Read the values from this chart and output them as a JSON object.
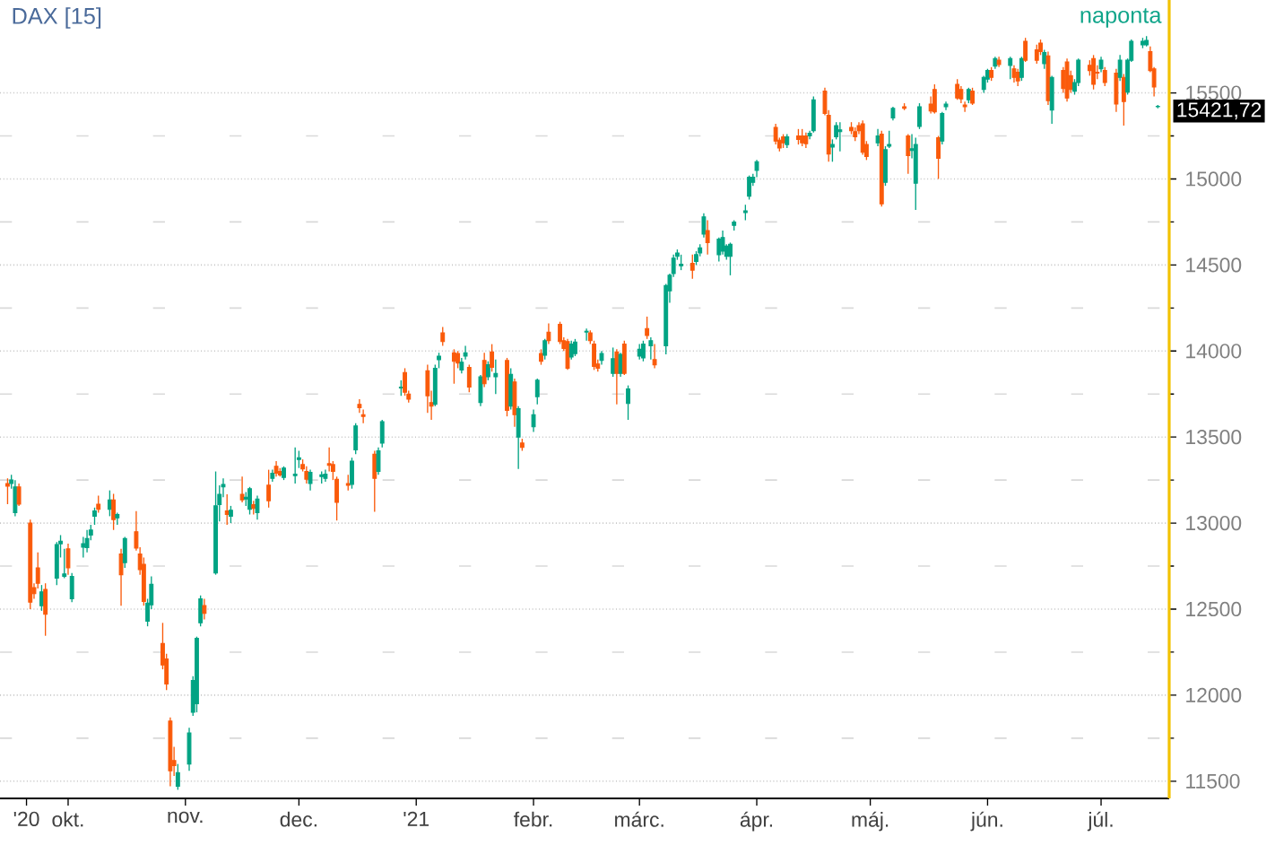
{
  "chart_data": {
    "type": "candlestick",
    "title": "DAX [15]",
    "subtitle": "naponta",
    "colors": [
      "#fa5a0a",
      "#00a383",
      "#00a383",
      "#fa5a0a",
      "#fa5a0a",
      "#fa5a0a",
      "#fa5a0a",
      "#00a383",
      "#fa5a0a",
      "#00a383",
      "#00a383",
      "#00a383",
      "#fa5a0a",
      "#00a383",
      "#00a383",
      "#00a383",
      "#00a383",
      "#00a383",
      "#fa5a0a",
      "#00a383",
      "#fa5a0a",
      "#00a383",
      "#fa5a0a",
      "#00a383",
      "#fa5a0a",
      "#fa5a0a",
      "#fa5a0a",
      "#00a383",
      "#00a383",
      "#fa5a0a",
      "#fa5a0a",
      "#fa5a0a",
      "#fa5a0a",
      "#00a383",
      "#00a383",
      "#00a383",
      "#00a383",
      "#00a383",
      "#fa5a0a",
      "#00a383",
      "#00a383",
      "#00a383",
      "#fa5a0a",
      "#00a383",
      "#fa5a0a",
      "#00a383",
      "#00a383",
      "#fa5a0a",
      "#00a383",
      "#fa5a0a",
      "#00a383",
      "#fa5a0a",
      "#fa5a0a",
      "#00a383",
      "#00a383",
      "#00a383",
      "#fa5a0a",
      "#fa5a0a",
      "#00a383",
      "#00a383",
      "#00a383",
      "#fa5a0a",
      "#fa5a0a",
      "#fa5a0a",
      "#fa5a0a",
      "#00a383",
      "#00a383",
      "#fa5a0a",
      "#fa5a0a",
      "#fa5a0a",
      "#00a383",
      "#00a383",
      "#00a383",
      "#fa5a0a",
      "#fa5a0a",
      "#fa5a0a",
      "#fa5a0a",
      "#00a383",
      "#00a383",
      "#fa5a0a",
      "#fa5a0a",
      "#fa5a0a",
      "#00a383",
      "#00a383",
      "#fa5a0a",
      "#00a383",
      "#fa5a0a",
      "#00a383",
      "#fa5a0a",
      "#00a383",
      "#fa5a0a",
      "#00a383",
      "#fa5a0a",
      "#00a383",
      "#fa5a0a",
      "#00a383",
      "#00a383",
      "#fa5a0a",
      "#00a383",
      "#fa5a0a",
      "#fa5a0a",
      "#fa5a0a",
      "#fa5a0a",
      "#00a383",
      "#00a383",
      "#00a383",
      "#fa5a0a",
      "#fa5a0a",
      "#fa5a0a",
      "#00a383",
      "#00a383",
      "#fa5a0a",
      "#00a383",
      "#fa5a0a",
      "#00a383",
      "#00a383",
      "#00a383",
      "#fa5a0a",
      "#00a383",
      "#fa5a0a",
      "#00a383",
      "#00a383",
      "#00a383",
      "#00a383",
      "#00a383",
      "#fa5a0a",
      "#00a383",
      "#00a383",
      "#00a383",
      "#fa5a0a",
      "#00a383",
      "#00a383",
      "#00a383",
      "#00a383",
      "#00a383",
      "#00a383",
      "#00a383",
      "#00a383",
      "#00a383",
      "#fa5a0a",
      "#fa5a0a",
      "#fa5a0a",
      "#00a383",
      "#fa5a0a",
      "#fa5a0a",
      "#fa5a0a",
      "#00a383",
      "#00a383",
      "#fa5a0a",
      "#fa5a0a",
      "#00a383",
      "#00a383",
      "#00a383",
      "#fa5a0a",
      "#fa5a0a",
      "#fa5a0a",
      "#fa5a0a",
      "#fa5a0a",
      "#00a383",
      "#fa5a0a",
      "#00a383",
      "#00a383",
      "#00a383",
      "#fa5a0a",
      "#fa5a0a",
      "#00a383",
      "#00a383",
      "#00a383",
      "#fa5a0a",
      "#fa5a0a",
      "#fa5a0a",
      "#00a383",
      "#00a383",
      "#fa5a0a",
      "#fa5a0a",
      "#fa5a0a",
      "#00a383",
      "#fa5a0a",
      "#00a383",
      "#00a383",
      "#fa5a0a",
      "#00a383",
      "#fa5a0a",
      "#00a383",
      "#fa5a0a",
      "#fa5a0a",
      "#00a383",
      "#fa5a0a",
      "#fa5a0a",
      "#fa5a0a",
      "#00a383",
      "#fa5a0a",
      "#00a383",
      "#fa5a0a",
      "#fa5a0a",
      "#fa5a0a",
      "#00a383",
      "#00a383",
      "#fa5a0a",
      "#fa5a0a",
      "#fa5a0a",
      "#00a383",
      "#fa5a0a",
      "#fa5a0a",
      "#00a383",
      "#fa5a0a",
      "#00a383",
      "#00a383",
      "#00a383",
      "#00a383",
      "#fa5a0a",
      "#fa5a0a",
      "#00a383"
    ],
    "x": [
      "2020-09-15",
      "2020-09-16",
      "2020-09-17",
      "2020-09-18",
      "2020-09-21",
      "2020-09-22",
      "2020-09-23",
      "2020-09-24",
      "2020-09-25",
      "2020-09-28",
      "2020-09-29",
      "2020-09-30",
      "2020-10-01",
      "2020-10-02",
      "2020-10-05",
      "2020-10-06",
      "2020-10-07",
      "2020-10-08",
      "2020-10-09",
      "2020-10-12",
      "2020-10-13",
      "2020-10-14",
      "2020-10-15",
      "2020-10-16",
      "2020-10-19",
      "2020-10-20",
      "2020-10-21",
      "2020-10-22",
      "2020-10-23",
      "2020-10-26",
      "2020-10-27",
      "2020-10-28",
      "2020-10-29",
      "2020-10-30",
      "2020-11-02",
      "2020-11-03",
      "2020-11-04",
      "2020-11-05",
      "2020-11-06",
      "2020-11-09",
      "2020-11-10",
      "2020-11-11",
      "2020-11-12",
      "2020-11-13",
      "2020-11-16",
      "2020-11-17",
      "2020-11-18",
      "2020-11-19",
      "2020-11-20",
      "2020-11-23",
      "2020-11-24",
      "2020-11-25",
      "2020-11-26",
      "2020-11-27",
      "2020-11-30",
      "2020-12-01",
      "2020-12-02",
      "2020-12-03",
      "2020-12-04",
      "2020-12-07",
      "2020-12-08",
      "2020-12-09",
      "2020-12-10",
      "2020-12-11",
      "2020-12-14",
      "2020-12-15",
      "2020-12-16",
      "2020-12-17",
      "2020-12-18",
      "2020-12-21",
      "2020-12-22",
      "2020-12-23",
      "2020-12-28",
      "2020-12-29",
      "2020-12-30",
      "2021-01-04",
      "2021-01-05",
      "2021-01-06",
      "2021-01-07",
      "2021-01-08",
      "2021-01-11",
      "2021-01-12",
      "2021-01-13",
      "2021-01-14",
      "2021-01-15",
      "2021-01-18",
      "2021-01-19",
      "2021-01-20",
      "2021-01-21",
      "2021-01-22",
      "2021-01-25",
      "2021-01-26",
      "2021-01-27",
      "2021-01-28",
      "2021-01-29",
      "2021-02-01",
      "2021-02-02",
      "2021-02-03",
      "2021-02-04",
      "2021-02-05",
      "2021-02-08",
      "2021-02-09",
      "2021-02-10",
      "2021-02-11",
      "2021-02-12",
      "2021-02-15",
      "2021-02-16",
      "2021-02-17",
      "2021-02-18",
      "2021-02-19",
      "2021-02-22",
      "2021-02-23",
      "2021-02-24",
      "2021-02-25",
      "2021-02-26",
      "2021-03-01",
      "2021-03-02",
      "2021-03-03",
      "2021-03-04",
      "2021-03-05",
      "2021-03-08",
      "2021-03-09",
      "2021-03-10",
      "2021-03-11",
      "2021-03-12",
      "2021-03-15",
      "2021-03-16",
      "2021-03-17",
      "2021-03-18",
      "2021-03-19",
      "2021-03-22",
      "2021-03-23",
      "2021-03-24",
      "2021-03-25",
      "2021-03-26",
      "2021-03-29",
      "2021-03-30",
      "2021-03-31",
      "2021-04-01",
      "2021-04-06",
      "2021-04-07",
      "2021-04-08",
      "2021-04-09",
      "2021-04-12",
      "2021-04-13",
      "2021-04-14",
      "2021-04-15",
      "2021-04-16",
      "2021-04-19",
      "2021-04-20",
      "2021-04-21",
      "2021-04-22",
      "2021-04-23",
      "2021-04-26",
      "2021-04-27",
      "2021-04-28",
      "2021-04-29",
      "2021-04-30",
      "2021-05-03",
      "2021-05-04",
      "2021-05-05",
      "2021-05-06",
      "2021-05-07",
      "2021-05-10",
      "2021-05-11",
      "2021-05-12",
      "2021-05-13",
      "2021-05-14",
      "2021-05-17",
      "2021-05-18",
      "2021-05-19",
      "2021-05-20",
      "2021-05-21",
      "2021-05-24",
      "2021-05-25",
      "2021-05-26",
      "2021-05-27",
      "2021-05-28",
      "2021-05-31",
      "2021-06-01",
      "2021-06-02",
      "2021-06-03",
      "2021-06-04",
      "2021-06-07",
      "2021-06-08",
      "2021-06-09",
      "2021-06-10",
      "2021-06-11",
      "2021-06-14",
      "2021-06-15",
      "2021-06-16",
      "2021-06-17",
      "2021-06-18",
      "2021-06-21",
      "2021-06-22",
      "2021-06-23",
      "2021-06-24",
      "2021-06-25",
      "2021-06-28",
      "2021-06-29",
      "2021-06-30",
      "2021-07-01",
      "2021-07-02",
      "2021-07-05",
      "2021-07-06",
      "2021-07-07",
      "2021-07-08",
      "2021-07-09",
      "2021-07-12",
      "2021-07-13",
      "2021-07-14",
      "2021-07-15",
      "2021-07-16"
    ],
    "ohlc": [
      [
        13230,
        13260,
        13110,
        13215
      ],
      [
        13230,
        13280,
        13200,
        13250
      ],
      [
        13060,
        13250,
        13040,
        13210
      ],
      [
        13210,
        13230,
        13100,
        13110
      ],
      [
        13000,
        13020,
        12500,
        12540
      ],
      [
        12625,
        12650,
        12560,
        12590
      ],
      [
        12740,
        12830,
        12620,
        12650
      ],
      [
        12520,
        12640,
        12490,
        12600
      ],
      [
        12615,
        12650,
        12345,
        12470
      ],
      [
        12680,
        12890,
        12640,
        12875
      ],
      [
        12880,
        12930,
        12800,
        12895
      ],
      [
        12690,
        12850,
        12680,
        12705
      ],
      [
        12850,
        12880,
        12700,
        12740
      ],
      [
        12560,
        12710,
        12540,
        12690
      ],
      [
        12860,
        12920,
        12800,
        12880
      ],
      [
        12857,
        12960,
        12830,
        12910
      ],
      [
        12930,
        12990,
        12900,
        12960
      ],
      [
        13040,
        13090,
        12990,
        13070
      ],
      [
        13110,
        13160,
        13060,
        13080
      ],
      [
        13080,
        13190,
        13040,
        13135
      ],
      [
        13135,
        13170,
        12960,
        13020
      ],
      [
        13030,
        13060,
        12990,
        13050
      ],
      [
        12820,
        12850,
        12520,
        12700
      ],
      [
        12770,
        12920,
        12740,
        12910
      ],
      [
        12950,
        13070,
        12840,
        12855
      ],
      [
        12820,
        12860,
        12700,
        12730
      ],
      [
        12760,
        12800,
        12520,
        12545
      ],
      [
        12430,
        12560,
        12400,
        12535
      ],
      [
        12525,
        12690,
        12500,
        12645
      ],
      [
        12300,
        12420,
        12150,
        12175
      ],
      [
        12210,
        12240,
        12030,
        12065
      ],
      [
        11850,
        11870,
        11470,
        11560
      ],
      [
        11620,
        11700,
        11530,
        11590
      ],
      [
        11470,
        11600,
        11450,
        11550
      ],
      [
        11600,
        11810,
        11560,
        11780
      ],
      [
        11900,
        12110,
        11880,
        12085
      ],
      [
        11950,
        12340,
        11900,
        12330
      ],
      [
        12420,
        12580,
        12400,
        12560
      ],
      [
        12520,
        12560,
        12440,
        12475
      ],
      [
        12710,
        13300,
        12700,
        13100
      ],
      [
        13107,
        13220,
        13010,
        13167
      ],
      [
        13210,
        13260,
        13150,
        13225
      ],
      [
        13070,
        13167,
        12990,
        13050
      ],
      [
        13040,
        13100,
        13000,
        13075
      ],
      [
        13167,
        13270,
        13120,
        13135
      ],
      [
        13140,
        13180,
        13100,
        13150
      ],
      [
        13080,
        13210,
        13050,
        13200
      ],
      [
        13107,
        13130,
        13050,
        13085
      ],
      [
        13060,
        13160,
        13020,
        13140
      ],
      [
        13220,
        13310,
        13090,
        13130
      ],
      [
        13260,
        13310,
        13240,
        13290
      ],
      [
        13330,
        13360,
        13270,
        13290
      ],
      [
        13300,
        13320,
        13270,
        13280
      ],
      [
        13265,
        13330,
        13250,
        13320
      ],
      [
        13275,
        13440,
        13230,
        13285
      ],
      [
        13370,
        13420,
        13320,
        13380
      ],
      [
        13340,
        13370,
        13300,
        13315
      ],
      [
        13300,
        13330,
        13230,
        13255
      ],
      [
        13230,
        13310,
        13190,
        13295
      ],
      [
        13270,
        13300,
        13230,
        13280
      ],
      [
        13260,
        13310,
        13240,
        13285
      ],
      [
        13345,
        13440,
        13300,
        13335
      ],
      [
        13340,
        13360,
        13250,
        13300
      ],
      [
        13255,
        13270,
        13015,
        13120
      ],
      [
        13230,
        13280,
        13190,
        13220
      ],
      [
        13225,
        13380,
        13200,
        13360
      ],
      [
        13425,
        13580,
        13400,
        13565
      ],
      [
        13690,
        13720,
        13640,
        13670
      ],
      [
        13630,
        13660,
        13580,
        13620
      ],
      [
        13400,
        13420,
        13065,
        13260
      ],
      [
        13300,
        13440,
        13280,
        13420
      ],
      [
        13465,
        13600,
        13440,
        13590
      ],
      [
        13785,
        13830,
        13740,
        13790
      ],
      [
        13875,
        13900,
        13740,
        13760
      ],
      [
        13750,
        13770,
        13700,
        13720
      ],
      [
        13885,
        13920,
        13640,
        13740
      ],
      [
        13700,
        13770,
        13600,
        13680
      ],
      [
        13690,
        13920,
        13680,
        13900
      ],
      [
        13950,
        13990,
        13900,
        13970
      ],
      [
        14105,
        14140,
        14030,
        14055
      ],
      [
        13990,
        14010,
        13810,
        13940
      ],
      [
        13985,
        14000,
        13900,
        13930
      ],
      [
        13890,
        13960,
        13870,
        13935
      ],
      [
        13970,
        14030,
        13950,
        13990
      ],
      [
        13905,
        13920,
        13760,
        13790
      ],
      [
        13700,
        13860,
        13680,
        13850
      ],
      [
        13945,
        13990,
        13790,
        13810
      ],
      [
        13850,
        13940,
        13830,
        13920
      ],
      [
        13995,
        14040,
        13880,
        13905
      ],
      [
        13850,
        13950,
        13750,
        13870
      ],
      [
        13945,
        13960,
        13620,
        13655
      ],
      [
        13680,
        13900,
        13660,
        13865
      ],
      [
        13820,
        13840,
        13560,
        13630
      ],
      [
        13500,
        13680,
        13315,
        13665
      ],
      [
        13465,
        13490,
        13420,
        13440
      ],
      [
        13560,
        13660,
        13530,
        13630
      ],
      [
        13735,
        13840,
        13690,
        13830
      ],
      [
        13985,
        14010,
        13920,
        13940
      ],
      [
        13975,
        14070,
        13950,
        14060
      ],
      [
        14110,
        14160,
        14040,
        14060
      ],
      [
        14155,
        14170,
        14040,
        14055
      ],
      [
        14060,
        14080,
        14000,
        14015
      ],
      [
        14055,
        14070,
        13890,
        13900
      ],
      [
        13965,
        14060,
        13950,
        14040
      ],
      [
        13985,
        14070,
        13970,
        14052
      ],
      [
        14110,
        14130,
        14060,
        14115
      ],
      [
        14105,
        14120,
        14040,
        14060
      ],
      [
        14040,
        14060,
        13890,
        13910
      ],
      [
        13925,
        13950,
        13880,
        13900
      ],
      [
        13945,
        14000,
        13920,
        13985
      ],
      [
        13870,
        14020,
        13850,
        13955
      ],
      [
        13995,
        14010,
        13690,
        13870
      ],
      [
        13870,
        13990,
        13850,
        13980
      ],
      [
        14040,
        14060,
        13860,
        13870
      ],
      [
        13695,
        13800,
        13600,
        13780
      ],
      [
        13970,
        14040,
        13950,
        14010
      ],
      [
        13960,
        14060,
        13940,
        14040
      ],
      [
        14130,
        14200,
        14070,
        14090
      ],
      [
        14030,
        14080,
        13950,
        14060
      ],
      [
        13950,
        14040,
        13900,
        13920
      ],
      [
        14030,
        14390,
        13980,
        14380
      ],
      [
        14350,
        14450,
        14280,
        14440
      ],
      [
        14450,
        14560,
        14430,
        14540
      ],
      [
        14550,
        14590,
        14530,
        14570
      ],
      [
        14495,
        14560,
        14470,
        14505
      ],
      [
        14510,
        14560,
        14420,
        14470
      ],
      [
        14520,
        14580,
        14500,
        14560
      ],
      [
        14570,
        14620,
        14550,
        14600
      ],
      [
        14680,
        14800,
        14660,
        14780
      ],
      [
        14700,
        14760,
        14560,
        14630
      ],
      [
        14560,
        14660,
        14520,
        14650
      ],
      [
        14580,
        14700,
        14560,
        14660
      ],
      [
        14550,
        14620,
        14530,
        14610
      ],
      [
        14550,
        14630,
        14440,
        14620
      ],
      [
        14730,
        14760,
        14700,
        14750
      ],
      [
        14805,
        14850,
        14760,
        14815
      ],
      [
        14900,
        15020,
        14880,
        15010
      ],
      [
        14980,
        15030,
        14960,
        15010
      ],
      [
        15050,
        15110,
        15010,
        15100
      ],
      [
        15300,
        15320,
        15200,
        15220
      ],
      [
        15225,
        15240,
        15160,
        15180
      ],
      [
        15245,
        15260,
        15180,
        15210
      ],
      [
        15200,
        15260,
        15180,
        15245
      ],
      [
        15250,
        15290,
        15200,
        15230
      ],
      [
        15250,
        15290,
        15190,
        15210
      ],
      [
        15250,
        15270,
        15180,
        15205
      ],
      [
        15250,
        15280,
        15230,
        15265
      ],
      [
        15280,
        15480,
        15270,
        15460
      ],
      [
        15510,
        15530,
        15370,
        15380
      ],
      [
        15370,
        15400,
        15100,
        15145
      ],
      [
        15185,
        15230,
        15100,
        15200
      ],
      [
        15245,
        15330,
        15230,
        15310
      ],
      [
        15275,
        15330,
        15160,
        15285
      ],
      [
        15300,
        15330,
        15260,
        15280
      ],
      [
        15275,
        15300,
        15220,
        15245
      ],
      [
        15310,
        15330,
        15260,
        15280
      ],
      [
        15320,
        15340,
        15140,
        15155
      ],
      [
        15200,
        15220,
        15110,
        15130
      ],
      [
        15210,
        15290,
        15190,
        15250
      ],
      [
        15260,
        15280,
        14840,
        14855
      ],
      [
        14980,
        15190,
        14960,
        15170
      ],
      [
        15190,
        15280,
        15180,
        15200
      ],
      [
        15355,
        15420,
        15340,
        15410
      ],
      [
        15420,
        15440,
        15400,
        15410
      ],
      [
        15250,
        15260,
        15030,
        15135
      ],
      [
        15165,
        15260,
        15120,
        15175
      ],
      [
        14975,
        15240,
        14820,
        15200
      ],
      [
        15305,
        15440,
        15290,
        15420
      ],
      [
        15435,
        15480,
        15380,
        15395
      ],
      [
        15520,
        15550,
        15380,
        15390
      ],
      [
        15240,
        15250,
        15000,
        15120
      ],
      [
        15220,
        15390,
        15200,
        15380
      ],
      [
        15420,
        15450,
        15400,
        15435
      ],
      [
        15550,
        15580,
        15460,
        15470
      ],
      [
        15520,
        15540,
        15440,
        15465
      ],
      [
        15430,
        15450,
        15390,
        15420
      ],
      [
        15460,
        15530,
        15440,
        15520
      ],
      [
        15510,
        15530,
        15430,
        15440
      ],
      [
        15520,
        15600,
        15500,
        15590
      ],
      [
        15580,
        15640,
        15560,
        15630
      ],
      [
        15630,
        15650,
        15570,
        15590
      ],
      [
        15655,
        15710,
        15640,
        15700
      ],
      [
        15690,
        15710,
        15650,
        15665
      ],
      [
        15660,
        15710,
        15580,
        15700
      ],
      [
        15640,
        15660,
        15560,
        15590
      ],
      [
        15620,
        15640,
        15540,
        15570
      ],
      [
        15590,
        15710,
        15570,
        15700
      ],
      [
        15800,
        15820,
        15680,
        15690
      ],
      [
        15750,
        15780,
        15670,
        15690
      ],
      [
        15790,
        15810,
        15720,
        15740
      ],
      [
        15670,
        15750,
        15640,
        15735
      ],
      [
        15715,
        15740,
        15430,
        15455
      ],
      [
        15400,
        15600,
        15320,
        15590
      ],
      [
        15630,
        15650,
        15500,
        15525
      ],
      [
        15680,
        15700,
        15450,
        15470
      ],
      [
        15600,
        15630,
        15500,
        15520
      ],
      [
        15510,
        15580,
        15490,
        15560
      ],
      [
        15560,
        15700,
        15540,
        15690
      ],
      [
        15660,
        15690,
        15600,
        15630
      ],
      [
        15700,
        15720,
        15520,
        15550
      ],
      [
        15620,
        15660,
        15580,
        15615
      ],
      [
        15640,
        15710,
        15620,
        15690
      ],
      [
        15630,
        15650,
        15540,
        15560
      ],
      [
        15615,
        15640,
        15390,
        15435
      ],
      [
        15590,
        15720,
        15570,
        15690
      ],
      [
        15590,
        15610,
        15310,
        15450
      ],
      [
        15505,
        15700,
        15490,
        15690
      ],
      [
        15690,
        15810,
        15680,
        15800
      ],
      [
        15780,
        15820,
        15760,
        15800
      ],
      [
        15780,
        15830,
        15770,
        15805
      ],
      [
        15740,
        15770,
        15620,
        15630
      ],
      [
        15640,
        15650,
        15480,
        15535
      ],
      [
        15420,
        15430,
        15410,
        15421.72
      ]
    ],
    "xlim": [
      "2020-09-13",
      "2021-07-19"
    ],
    "xticks": [
      {
        "value": "2020-09-20",
        "label": "'20"
      },
      {
        "value": "2020-10-01",
        "label": "okt."
      },
      {
        "value": "2020-11-01",
        "label": "nov."
      },
      {
        "value": "2020-12-01",
        "label": "dec."
      },
      {
        "value": "2021-01-01",
        "label": "'21"
      },
      {
        "value": "2021-02-01",
        "label": "febr."
      },
      {
        "value": "2021-03-01",
        "label": "márc."
      },
      {
        "value": "2021-04-01",
        "label": "ápr."
      },
      {
        "value": "2021-05-01",
        "label": "máj."
      },
      {
        "value": "2021-06-01",
        "label": "jún."
      },
      {
        "value": "2021-07-01",
        "label": "júl."
      }
    ],
    "ylim": [
      11400,
      16040
    ],
    "yticks": [
      11500,
      12000,
      12500,
      13000,
      13500,
      14000,
      14500,
      15000,
      15500
    ],
    "grid": "y",
    "annotations": [
      {
        "text": "15421,72",
        "x": "2021-07-16",
        "y": 15421.72
      }
    ]
  }
}
